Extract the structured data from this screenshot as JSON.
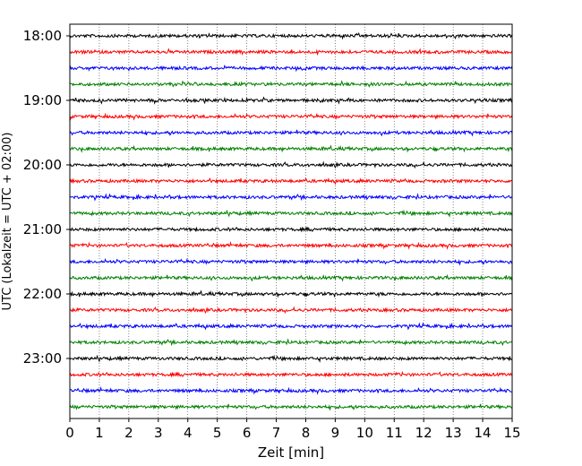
{
  "chart_data": {
    "type": "line",
    "xlabel": "Zeit  [min]",
    "ylabel": "UTC (Lokalzeit = UTC + 02:00)",
    "xlim": [
      0,
      15
    ],
    "x_ticks": [
      0,
      1,
      2,
      3,
      4,
      5,
      6,
      7,
      8,
      9,
      10,
      11,
      12,
      13,
      14,
      15
    ],
    "y_tick_labels": [
      "18:00",
      "19:00",
      "20:00",
      "21:00",
      "22:00",
      "23:00"
    ],
    "grid": "vertical dotted",
    "trace_interval_min": 15,
    "colors_cycle": [
      "#000000",
      "#ff0000",
      "#0000ff",
      "#008000"
    ],
    "traces": [
      {
        "start": "18:00",
        "color": "#000000"
      },
      {
        "start": "18:15",
        "color": "#ff0000"
      },
      {
        "start": "18:30",
        "color": "#0000ff"
      },
      {
        "start": "18:45",
        "color": "#008000"
      },
      {
        "start": "19:00",
        "color": "#000000"
      },
      {
        "start": "19:15",
        "color": "#ff0000"
      },
      {
        "start": "19:30",
        "color": "#0000ff"
      },
      {
        "start": "19:45",
        "color": "#008000"
      },
      {
        "start": "20:00",
        "color": "#000000"
      },
      {
        "start": "20:15",
        "color": "#ff0000"
      },
      {
        "start": "20:30",
        "color": "#0000ff"
      },
      {
        "start": "20:45",
        "color": "#008000"
      },
      {
        "start": "21:00",
        "color": "#000000"
      },
      {
        "start": "21:15",
        "color": "#ff0000"
      },
      {
        "start": "21:30",
        "color": "#0000ff"
      },
      {
        "start": "21:45",
        "color": "#008000"
      },
      {
        "start": "22:00",
        "color": "#000000"
      },
      {
        "start": "22:15",
        "color": "#ff0000"
      },
      {
        "start": "22:30",
        "color": "#0000ff"
      },
      {
        "start": "22:45",
        "color": "#008000"
      },
      {
        "start": "23:00",
        "color": "#000000"
      },
      {
        "start": "23:15",
        "color": "#ff0000"
      },
      {
        "start": "23:30",
        "color": "#0000ff"
      },
      {
        "start": "23:45",
        "color": "#008000"
      }
    ]
  }
}
